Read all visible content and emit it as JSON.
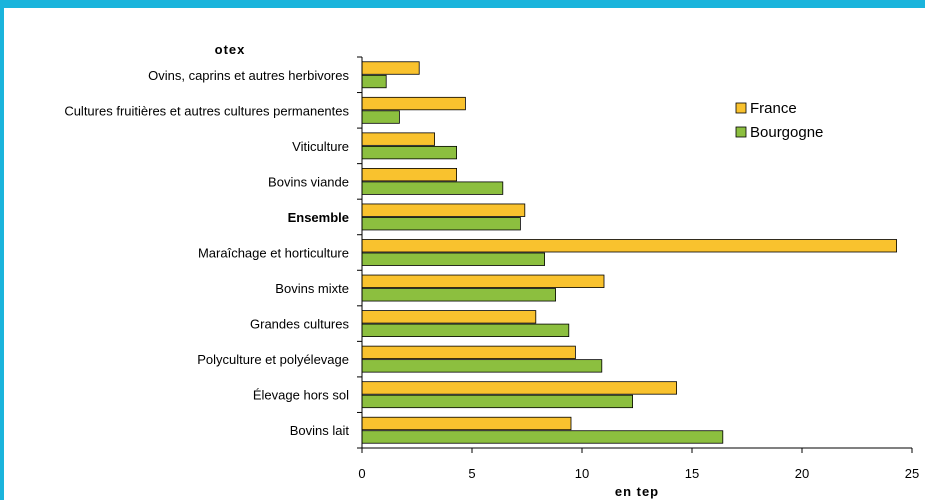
{
  "chart_data": {
    "type": "bar",
    "orientation": "horizontal",
    "yaxis_title": "otex",
    "xlabel": "en tep",
    "xlim": [
      0,
      25
    ],
    "xticks": [
      0,
      5,
      10,
      15,
      20,
      25
    ],
    "grid": false,
    "legend_position": "top-right",
    "categories": [
      "Ovins, caprins et autres herbivores",
      "Cultures fruitières et autres cultures permanentes",
      "Viticulture",
      "Bovins viande",
      "Ensemble",
      "Maraîchage et horticulture",
      "Bovins mixte",
      "Grandes cultures",
      "Polyculture et polyélevage",
      "Élevage hors sol",
      "Bovins lait"
    ],
    "bold_categories": [
      "Ensemble"
    ],
    "series": [
      {
        "name": "France",
        "color": "#f9c22e",
        "values": [
          2.6,
          4.7,
          3.3,
          4.3,
          7.4,
          24.3,
          11.0,
          7.9,
          9.7,
          14.3,
          9.5
        ]
      },
      {
        "name": "Bourgogne",
        "color": "#8cbf3f",
        "values": [
          1.1,
          1.7,
          4.3,
          6.4,
          7.2,
          8.3,
          8.8,
          9.4,
          10.9,
          12.3,
          16.4
        ]
      }
    ]
  }
}
